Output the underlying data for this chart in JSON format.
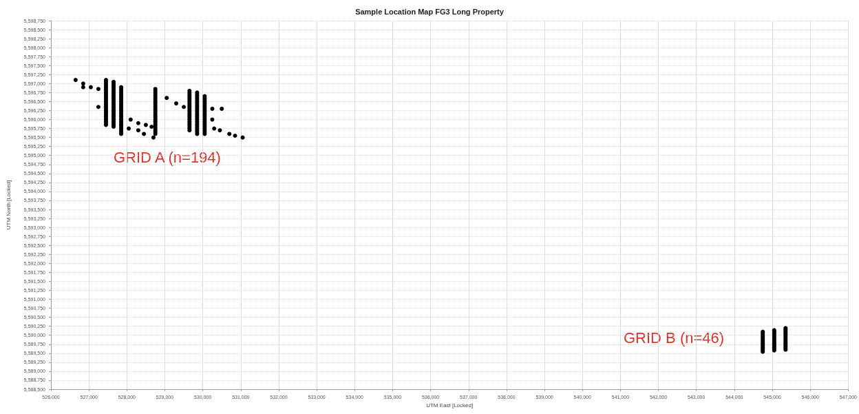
{
  "chart_data": {
    "type": "scatter",
    "title": "Sample Location Map FG3 Long Property",
    "xlabel": "UTM East [Locked]",
    "ylabel": "UTM North [Locked]",
    "xlim": [
      526000,
      547000
    ],
    "xticks": [
      {
        "value": 526000,
        "label": "526,000"
      },
      {
        "value": 527000,
        "label": "527,000"
      },
      {
        "value": 528000,
        "label": "528,000"
      },
      {
        "value": 529000,
        "label": "529,000"
      },
      {
        "value": 530000,
        "label": "530,000"
      },
      {
        "value": 531000,
        "label": "531,000"
      },
      {
        "value": 532000,
        "label": "532,000"
      },
      {
        "value": 533000,
        "label": "533,000"
      },
      {
        "value": 534000,
        "label": "534,000"
      },
      {
        "value": 535000,
        "label": "535,000"
      },
      {
        "value": 536000,
        "label": "536,000"
      },
      {
        "value": 537000,
        "label": "537,000"
      },
      {
        "value": 538000,
        "label": "538,000"
      },
      {
        "value": 539000,
        "label": "539,000"
      },
      {
        "value": 540000,
        "label": "540,000"
      },
      {
        "value": 541000,
        "label": "541,000"
      },
      {
        "value": 542000,
        "label": "542,000"
      },
      {
        "value": 543000,
        "label": "543,000"
      },
      {
        "value": 544000,
        "label": "544,000"
      },
      {
        "value": 545000,
        "label": "545,000"
      },
      {
        "value": 546000,
        "label": "546,000"
      },
      {
        "value": 547000,
        "label": "547,000"
      }
    ],
    "ylim": [
      5588500,
      5598750
    ],
    "yticks": [
      {
        "value": 5588500,
        "label": "5,588,500"
      },
      {
        "value": 5588750,
        "label": "5,588,750"
      },
      {
        "value": 5589000,
        "label": "5,589,000"
      },
      {
        "value": 5589250,
        "label": "5,589,250"
      },
      {
        "value": 5589500,
        "label": "5,589,500"
      },
      {
        "value": 5589750,
        "label": "5,589,750"
      },
      {
        "value": 5590000,
        "label": "5,590,000"
      },
      {
        "value": 5590250,
        "label": "5,590,250"
      },
      {
        "value": 5590500,
        "label": "5,590,500"
      },
      {
        "value": 5590750,
        "label": "5,590,750"
      },
      {
        "value": 5591000,
        "label": "5,591,000"
      },
      {
        "value": 5591250,
        "label": "5,591,250"
      },
      {
        "value": 5591500,
        "label": "5,591,500"
      },
      {
        "value": 5591750,
        "label": "5,591,750"
      },
      {
        "value": 5592000,
        "label": "5,592,000"
      },
      {
        "value": 5592250,
        "label": "5,592,250"
      },
      {
        "value": 5592500,
        "label": "5,592,500"
      },
      {
        "value": 5592750,
        "label": "5,592,750"
      },
      {
        "value": 5593000,
        "label": "5,593,000"
      },
      {
        "value": 5593250,
        "label": "5,593,250"
      },
      {
        "value": 5593500,
        "label": "5,593,500"
      },
      {
        "value": 5593750,
        "label": "5,593,750"
      },
      {
        "value": 5594000,
        "label": "5,594,000"
      },
      {
        "value": 5594250,
        "label": "5,594,250"
      },
      {
        "value": 5594500,
        "label": "5,594,500"
      },
      {
        "value": 5594750,
        "label": "5,594,750"
      },
      {
        "value": 5595000,
        "label": "5,595,000"
      },
      {
        "value": 5595250,
        "label": "5,595,250"
      },
      {
        "value": 5595500,
        "label": "5,595,500"
      },
      {
        "value": 5595750,
        "label": "5,595,750"
      },
      {
        "value": 5596000,
        "label": "5,596,000"
      },
      {
        "value": 5596250,
        "label": "5,596,250"
      },
      {
        "value": 5596500,
        "label": "5,596,500"
      },
      {
        "value": 5596750,
        "label": "5,596,750"
      },
      {
        "value": 5597000,
        "label": "5,597,000"
      },
      {
        "value": 5597250,
        "label": "5,597,250"
      },
      {
        "value": 5597500,
        "label": "5,597,500"
      },
      {
        "value": 5597750,
        "label": "5,597,750"
      },
      {
        "value": 5598000,
        "label": "5,598,000"
      },
      {
        "value": 5598250,
        "label": "5,598,250"
      },
      {
        "value": 5598500,
        "label": "5,598,500"
      },
      {
        "value": 5598750,
        "label": "5,598,750"
      }
    ],
    "grid": true,
    "marker": "circle",
    "annotations": [
      "GRID A (n=194)",
      "GRID B (n=46)"
    ],
    "series": [
      {
        "color": "#000000",
        "x": [
          526650,
          526850,
          526850,
          527050,
          527250,
          527250,
          528100,
          528050,
          528300,
          528300,
          528500,
          528450,
          528650,
          528700,
          529050,
          529300,
          529500,
          530250,
          530500,
          530250,
          530300,
          530450,
          530700,
          530850,
          531050,
          527450,
          527450,
          527450,
          527450,
          527450,
          527450,
          527450,
          527450,
          527450,
          527450,
          527450,
          527450,
          527450,
          527450,
          527450,
          527450,
          527450,
          527450,
          527450,
          527450,
          527450,
          527450,
          527450,
          527450,
          527450,
          527450,
          527650,
          527650,
          527650,
          527650,
          527650,
          527650,
          527650,
          527650,
          527650,
          527650,
          527650,
          527650,
          527650,
          527650,
          527650,
          527650,
          527650,
          527650,
          527650,
          527650,
          527650,
          527650,
          527650,
          527650,
          527650,
          527650,
          527850,
          527850,
          527850,
          527850,
          527850,
          527850,
          527850,
          527850,
          527850,
          527850,
          527850,
          527850,
          527850,
          527850,
          527850,
          527850,
          527850,
          527850,
          527850,
          527850,
          527850,
          527850,
          527850,
          527850,
          527850,
          527850,
          527850,
          528750,
          528750,
          528750,
          528750,
          528750,
          528750,
          528750,
          528750,
          528750,
          528750,
          528750,
          528750,
          528750,
          528750,
          528750,
          528750,
          528750,
          528750,
          528750,
          528750,
          528750,
          528750,
          528750,
          528750,
          528750,
          528750,
          529650,
          529650,
          529650,
          529650,
          529650,
          529650,
          529650,
          529650,
          529650,
          529650,
          529650,
          529650,
          529650,
          529650,
          529650,
          529650,
          529650,
          529650,
          529650,
          529650,
          529650,
          529650,
          529650,
          529850,
          529850,
          529850,
          529850,
          529850,
          529850,
          529850,
          529850,
          529850,
          529850,
          529850,
          529850,
          529850,
          529850,
          529850,
          529850,
          529850,
          529850,
          529850,
          529850,
          529850,
          529850,
          529850,
          529850,
          530050,
          530050,
          530050,
          530050,
          530050,
          530050,
          530050,
          530050,
          530050,
          530050,
          530050,
          530050,
          530050,
          530050,
          530050,
          530050,
          530050,
          530050,
          530050,
          530050,
          530050,
          530050,
          544750,
          544750,
          544750,
          544750,
          544750,
          544750,
          544750,
          544750,
          544750,
          544750,
          544750,
          544750,
          544750,
          544750,
          544750,
          545050,
          545050,
          545050,
          545050,
          545050,
          545050,
          545050,
          545050,
          545050,
          545050,
          545050,
          545050,
          545050,
          545050,
          545050,
          545350,
          545350,
          545350,
          545350,
          545350,
          545350,
          545350,
          545350,
          545350,
          545350,
          545350,
          545350,
          545350,
          545350,
          545350,
          545350
        ],
        "values": [
          5597100,
          5597000,
          5596900,
          5596900,
          5596850,
          5596350,
          5596000,
          5595750,
          5595900,
          5595700,
          5595850,
          5595600,
          5595800,
          5595500,
          5596600,
          5596450,
          5596350,
          5596300,
          5596300,
          5596000,
          5595750,
          5595700,
          5595600,
          5595550,
          5595500,
          5595850,
          5595900,
          5595950,
          5596000,
          5596050,
          5596100,
          5596150,
          5596200,
          5596250,
          5596300,
          5596350,
          5596400,
          5596450,
          5596500,
          5596550,
          5596600,
          5596650,
          5596700,
          5596750,
          5596800,
          5596850,
          5596900,
          5596950,
          5597000,
          5597050,
          5597100,
          5595800,
          5595850,
          5595900,
          5595950,
          5596000,
          5596050,
          5596100,
          5596150,
          5596200,
          5596250,
          5596300,
          5596350,
          5596400,
          5596450,
          5596500,
          5596550,
          5596600,
          5596650,
          5596700,
          5596750,
          5596800,
          5596850,
          5596900,
          5596950,
          5597000,
          5597050,
          5595600,
          5595650,
          5595700,
          5595750,
          5595800,
          5595850,
          5595900,
          5595950,
          5596000,
          5596050,
          5596100,
          5596150,
          5596200,
          5596250,
          5596300,
          5596350,
          5596400,
          5596450,
          5596500,
          5596550,
          5596600,
          5596650,
          5596700,
          5596750,
          5596800,
          5596850,
          5596900,
          5595600,
          5595650,
          5595700,
          5595750,
          5595800,
          5595850,
          5595900,
          5595950,
          5596000,
          5596050,
          5596100,
          5596150,
          5596200,
          5596250,
          5596300,
          5596350,
          5596400,
          5596450,
          5596500,
          5596550,
          5596600,
          5596650,
          5596700,
          5596750,
          5596800,
          5596850,
          5595700,
          5595750,
          5595800,
          5595850,
          5595900,
          5595950,
          5596000,
          5596050,
          5596100,
          5596150,
          5596200,
          5596250,
          5596300,
          5596350,
          5596400,
          5596450,
          5596500,
          5596550,
          5596600,
          5596650,
          5596700,
          5596750,
          5596800,
          5595600,
          5595650,
          5595700,
          5595750,
          5595800,
          5595850,
          5595900,
          5595950,
          5596000,
          5596050,
          5596100,
          5596150,
          5596200,
          5596250,
          5596300,
          5596350,
          5596400,
          5596450,
          5596500,
          5596550,
          5596600,
          5596650,
          5596700,
          5596750,
          5595600,
          5595650,
          5595700,
          5595750,
          5595800,
          5595850,
          5595900,
          5595950,
          5596000,
          5596050,
          5596100,
          5596150,
          5596200,
          5596250,
          5596300,
          5596350,
          5596400,
          5596450,
          5596500,
          5596550,
          5596600,
          5596650,
          5589540,
          5589580,
          5589620,
          5589660,
          5589700,
          5589740,
          5589780,
          5589820,
          5589860,
          5589900,
          5589940,
          5589980,
          5590020,
          5590060,
          5590100,
          5589580,
          5589620,
          5589660,
          5589700,
          5589740,
          5589780,
          5589820,
          5589860,
          5589900,
          5589940,
          5589980,
          5590020,
          5590060,
          5590100,
          5590140,
          5589600,
          5589640,
          5589680,
          5589720,
          5589760,
          5589800,
          5589840,
          5589880,
          5589920,
          5589960,
          5590000,
          5590040,
          5590080,
          5590120,
          5590160,
          5590200
        ]
      }
    ]
  }
}
